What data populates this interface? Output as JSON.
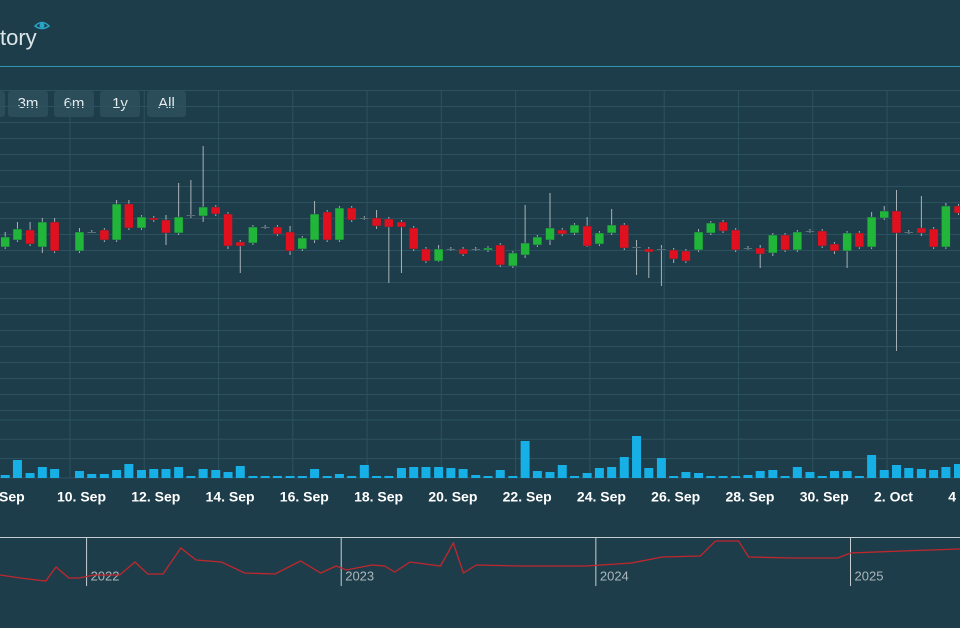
{
  "header": {
    "title": "tory"
  },
  "range_buttons": [
    "3m",
    "6m",
    "1y",
    "All"
  ],
  "chart_data": [
    {
      "type": "candlestick",
      "xlim": [
        7.9,
        33.75
      ],
      "ylim": [
        0,
        320
      ],
      "xticks": [
        {
          "value": 8,
          "label": "Sep"
        },
        {
          "value": 10,
          "label": "10. Sep"
        },
        {
          "value": 12,
          "label": "12. Sep"
        },
        {
          "value": 14,
          "label": "14. Sep"
        },
        {
          "value": 16,
          "label": "16. Sep"
        },
        {
          "value": 18,
          "label": "18. Sep"
        },
        {
          "value": 20,
          "label": "20. Sep"
        },
        {
          "value": 22,
          "label": "22. Sep"
        },
        {
          "value": 24,
          "label": "24. Sep"
        },
        {
          "value": 26,
          "label": "26. Sep"
        },
        {
          "value": 28,
          "label": "28. Sep"
        },
        {
          "value": 30,
          "label": "30. Sep"
        },
        {
          "value": 32,
          "label": "2. Oct"
        },
        {
          "value": 34,
          "label": "4"
        }
      ],
      "up_color": "#21b53a",
      "down_color": "#e0101f",
      "doji_color": "#9aa4a8",
      "wick_color": "#a8b2b6",
      "x": [
        8.04,
        8.37,
        8.71,
        9.04,
        9.37,
        10.04,
        10.37,
        10.71,
        11.04,
        11.37,
        11.71,
        12.04,
        12.37,
        12.71,
        13.04,
        13.37,
        13.71,
        14.04,
        14.37,
        14.71,
        15.04,
        15.37,
        15.71,
        16.04,
        16.37,
        16.71,
        17.04,
        17.37,
        17.71,
        18.04,
        18.37,
        18.71,
        19.04,
        19.37,
        19.71,
        20.04,
        20.37,
        20.71,
        21.04,
        21.37,
        21.71,
        22.04,
        22.37,
        22.71,
        23.04,
        23.37,
        23.71,
        24.04,
        24.37,
        24.71,
        25.04,
        25.37,
        25.71,
        26.04,
        26.37,
        26.71,
        27.04,
        27.37,
        27.71,
        28.04,
        28.37,
        28.71,
        29.04,
        29.37,
        29.71,
        30.04,
        30.37,
        30.71,
        31.04,
        31.37,
        31.71,
        32.04,
        32.37,
        32.71,
        33.04,
        33.37,
        33.71
      ],
      "open": [
        163,
        170,
        180,
        163,
        188,
        159,
        178,
        180,
        170,
        206,
        182,
        192,
        190,
        177,
        195,
        194,
        203,
        196,
        168,
        167,
        183,
        183,
        178,
        161,
        170,
        198,
        170,
        202,
        192,
        192,
        191,
        188,
        182,
        161,
        149,
        161,
        161,
        161,
        160,
        165,
        144,
        155,
        165,
        170,
        180,
        177,
        184,
        166,
        177,
        185,
        163,
        161,
        161,
        160,
        159,
        160,
        177,
        188,
        180,
        162,
        162,
        157,
        175,
        160,
        179,
        179,
        166,
        159,
        177,
        163,
        192,
        199,
        178,
        182,
        181,
        163,
        204
      ],
      "high": [
        178,
        188,
        188,
        192,
        192,
        182,
        180,
        182,
        210,
        210,
        195,
        194,
        195,
        227,
        230,
        264,
        205,
        198,
        170,
        185,
        185,
        185,
        184,
        174,
        209,
        200,
        204,
        204,
        194,
        200,
        193,
        190,
        184,
        163,
        165,
        163,
        163,
        163,
        164,
        167,
        159,
        205,
        175,
        217,
        182,
        187,
        193,
        179,
        201,
        187,
        170,
        163,
        165,
        162,
        161,
        181,
        189,
        190,
        182,
        164,
        165,
        177,
        177,
        180,
        181,
        181,
        168,
        179,
        179,
        198,
        204,
        220,
        180,
        214,
        183,
        207,
        206
      ],
      "low": [
        161,
        168,
        164,
        157,
        157,
        157,
        177,
        168,
        168,
        180,
        180,
        188,
        165,
        175,
        192,
        188,
        194,
        161,
        137,
        165,
        181,
        174,
        155,
        159,
        167,
        168,
        168,
        188,
        190,
        181,
        127,
        137,
        159,
        147,
        148,
        159,
        154,
        159,
        158,
        143,
        142,
        152,
        163,
        165,
        174,
        175,
        163,
        164,
        175,
        160,
        135,
        132,
        124,
        147,
        147,
        158,
        175,
        177,
        158,
        160,
        142,
        154,
        158,
        158,
        177,
        162,
        156,
        142,
        161,
        161,
        190,
        59,
        176,
        174,
        161,
        161,
        195
      ],
      "close": [
        173,
        181,
        166,
        188,
        159,
        178,
        178,
        170,
        206,
        182,
        193,
        190,
        177,
        193,
        195,
        203,
        196,
        164,
        164,
        183,
        183,
        176,
        159,
        172,
        196,
        170,
        202,
        190,
        192,
        184,
        183,
        183,
        161,
        149,
        161,
        161,
        156,
        161,
        162,
        145,
        157,
        167,
        173,
        182,
        176,
        185,
        164,
        177,
        185,
        162,
        163,
        158,
        161,
        151,
        149,
        178,
        187,
        179,
        160,
        162,
        156,
        175,
        160,
        178,
        179,
        164,
        159,
        177,
        163,
        193,
        199,
        177,
        178,
        177,
        163,
        204,
        197
      ]
    },
    {
      "type": "bar",
      "color": "#17b0e6",
      "xlim": [
        7.9,
        33.75
      ],
      "ylim": [
        0,
        58
      ],
      "x": [
        8.04,
        8.37,
        8.71,
        9.04,
        9.37,
        10.04,
        10.37,
        10.71,
        11.04,
        11.37,
        11.71,
        12.04,
        12.37,
        12.71,
        13.04,
        13.37,
        13.71,
        14.04,
        14.37,
        14.71,
        15.04,
        15.37,
        15.71,
        16.04,
        16.37,
        16.71,
        17.04,
        17.37,
        17.71,
        18.04,
        18.37,
        18.71,
        19.04,
        19.37,
        19.71,
        20.04,
        20.37,
        20.71,
        21.04,
        21.37,
        21.71,
        22.04,
        22.37,
        22.71,
        23.04,
        23.37,
        23.71,
        24.04,
        24.37,
        24.71,
        25.04,
        25.37,
        25.71,
        26.04,
        26.37,
        26.71,
        27.04,
        27.37,
        27.71,
        28.04,
        28.37,
        28.71,
        29.04,
        29.37,
        29.71,
        30.04,
        30.37,
        30.71,
        31.04,
        31.37,
        31.71,
        32.04,
        32.37,
        32.71,
        33.04,
        33.37,
        33.71
      ],
      "values": [
        3,
        18,
        5,
        11,
        9,
        7,
        4,
        4,
        8,
        14,
        8,
        9,
        9,
        11,
        2,
        9,
        8,
        6,
        12,
        2,
        2,
        2,
        2,
        2,
        9,
        2,
        4,
        2,
        13,
        2,
        2,
        10,
        11,
        11,
        11,
        10,
        9,
        3,
        2,
        8,
        2,
        37,
        7,
        6,
        13,
        2,
        5,
        10,
        11,
        21,
        42,
        10,
        20,
        2,
        6,
        5,
        2,
        2,
        2,
        3,
        7,
        8,
        2,
        11,
        6,
        2,
        7,
        7,
        2,
        23,
        8,
        13,
        10,
        9,
        8,
        11,
        14
      ]
    },
    {
      "type": "line",
      "color": "#c0272d",
      "xlim": [
        2021.66,
        2025.43
      ],
      "ylim": [
        0,
        50
      ],
      "xticks": [
        2022,
        2023,
        2024,
        2025
      ],
      "x": [
        2021.66,
        2021.74,
        2021.84,
        2021.88,
        2021.93,
        2021.97,
        2022.03,
        2022.13,
        2022.19,
        2022.24,
        2022.3,
        2022.37,
        2022.43,
        2022.53,
        2022.62,
        2022.74,
        2022.84,
        2022.92,
        2022.98,
        2023.02,
        2023.12,
        2023.17,
        2023.21,
        2023.27,
        2023.39,
        2023.44,
        2023.48,
        2023.53,
        2023.7,
        2023.96,
        2024.02,
        2024.14,
        2024.26,
        2024.41,
        2024.47,
        2024.56,
        2024.6,
        2024.77,
        2024.95,
        2025.0,
        2025.2,
        2025.43
      ],
      "values": [
        15,
        12,
        9,
        23,
        12,
        12,
        15,
        15,
        28,
        16,
        16,
        42,
        30,
        28,
        17,
        16,
        29,
        17,
        24,
        20,
        25,
        24,
        18,
        28,
        24,
        47,
        17,
        25,
        24,
        24,
        25,
        27,
        33,
        34,
        49,
        49,
        33,
        32,
        32,
        37,
        39,
        41
      ]
    }
  ]
}
